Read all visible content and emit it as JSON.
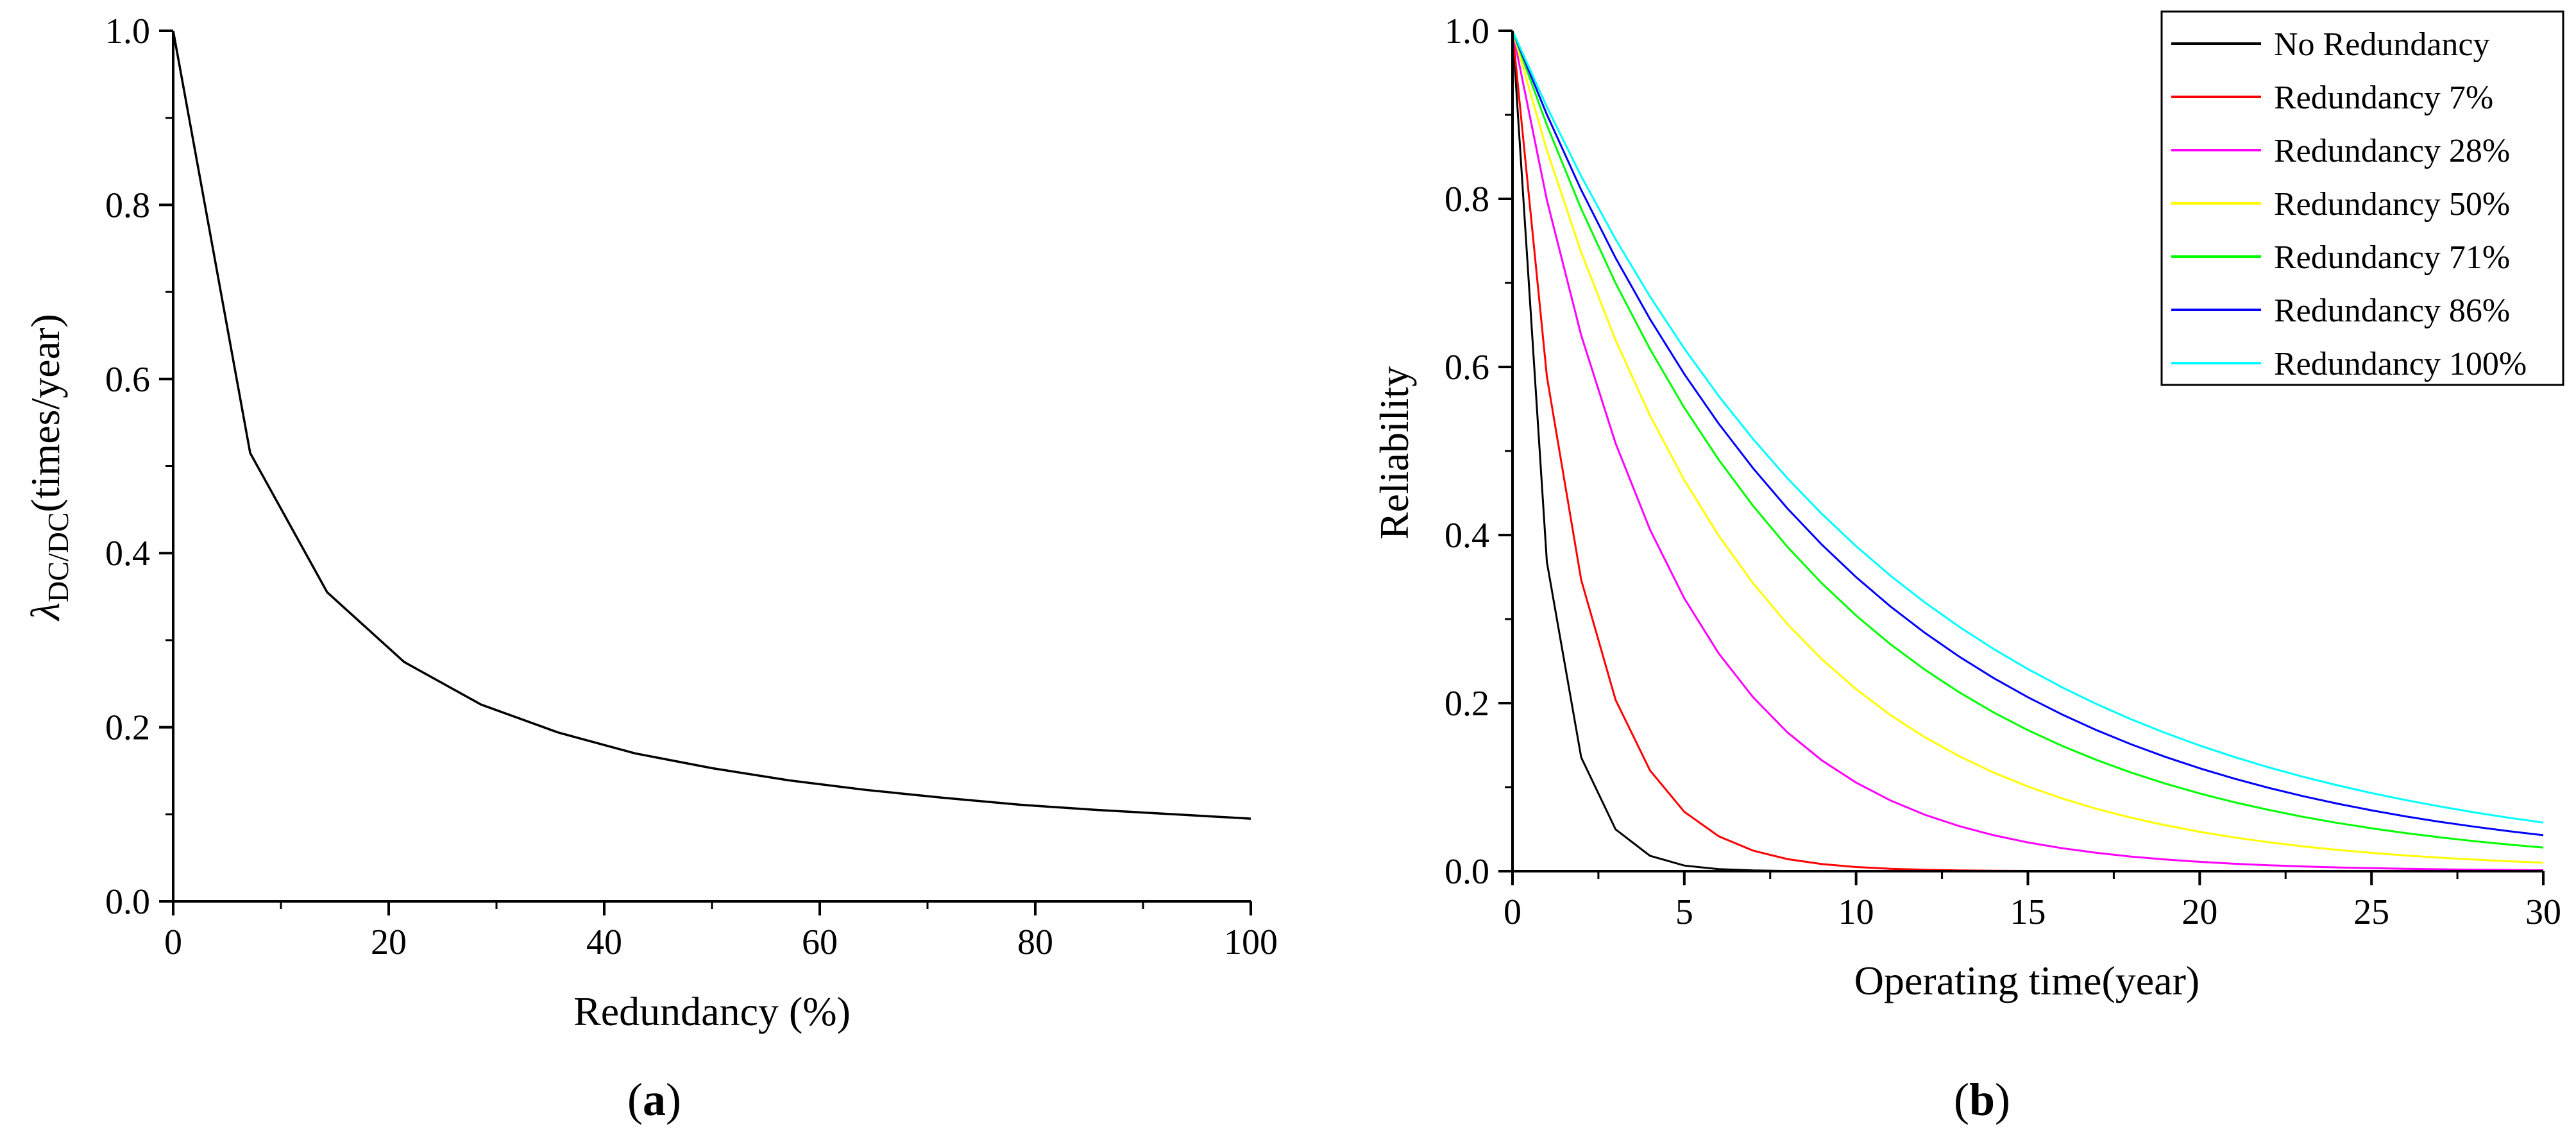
{
  "chart_data": [
    {
      "type": "line",
      "panel_label_open": "(",
      "panel_label_letter": "a",
      "panel_label_close": ")",
      "xlabel": "Redundancy (%)",
      "ylabel_symbol": "λ",
      "ylabel_subscript": "DC/DC",
      "ylabel_rest": "(times/year)",
      "xlim": [
        0,
        100
      ],
      "ylim": [
        0.0,
        1.0
      ],
      "xticks": [
        "0",
        "20",
        "40",
        "60",
        "80",
        "100"
      ],
      "yticks": [
        "0.0",
        "0.2",
        "0.4",
        "0.6",
        "0.8",
        "1.0"
      ],
      "series": [
        {
          "name": "λ DC/DC",
          "color": "#000000",
          "x": [
            0,
            7.14,
            14.29,
            21.43,
            28.57,
            35.71,
            42.86,
            50,
            57.14,
            64.29,
            71.43,
            78.57,
            85.71,
            92.86,
            100
          ],
          "y": [
            1.0,
            0.515,
            0.355,
            0.275,
            0.226,
            0.194,
            0.17,
            0.153,
            0.139,
            0.128,
            0.119,
            0.111,
            0.105,
            0.1,
            0.095
          ]
        }
      ]
    },
    {
      "type": "line",
      "panel_label_open": "(",
      "panel_label_letter": "b",
      "panel_label_close": ")",
      "xlabel": "Operating time(year)",
      "ylabel": "Reliability",
      "xlim": [
        0,
        30
      ],
      "ylim": [
        0.0,
        1.0
      ],
      "xticks": [
        "0",
        "5",
        "10",
        "15",
        "20",
        "25",
        "30"
      ],
      "yticks": [
        "0.0",
        "0.2",
        "0.4",
        "0.6",
        "0.8",
        "1.0"
      ],
      "legend_position": "top-right",
      "series": [
        {
          "name": "No Redundancy",
          "color": "#000000",
          "rate": 1.0
        },
        {
          "name": "Redundancy 7%",
          "color": "#ff0000",
          "rate": 0.53
        },
        {
          "name": "Redundancy 28%",
          "color": "#ff00ff",
          "rate": 0.225
        },
        {
          "name": "Redundancy 50%",
          "color": "#ffff00",
          "rate": 0.153
        },
        {
          "name": "Redundancy 71%",
          "color": "#00ff00",
          "rate": 0.119
        },
        {
          "name": "Redundancy 86%",
          "color": "#0000ff",
          "rate": 0.105
        },
        {
          "name": "Redundancy 100%",
          "color": "#00ffff",
          "rate": 0.095
        }
      ],
      "x_sample": [
        0,
        1,
        2,
        3,
        4,
        5,
        6,
        7,
        8,
        9,
        10,
        11,
        12,
        13,
        14,
        15,
        16,
        17,
        18,
        19,
        20,
        21,
        22,
        23,
        24,
        25,
        26,
        27,
        28,
        29,
        30
      ]
    }
  ]
}
